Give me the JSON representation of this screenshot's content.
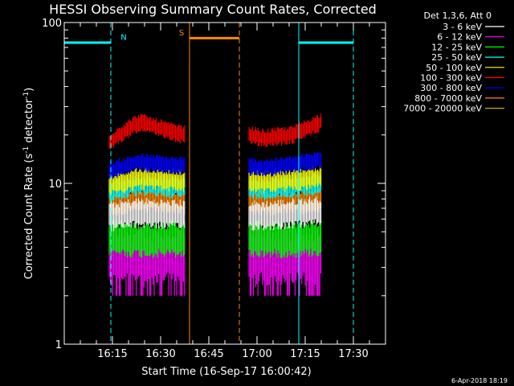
{
  "chart_data": {
    "type": "line",
    "title": "HESSI Observing Summary Count Rates, Corrected",
    "xlabel": "Start Time (16-Sep-17 16:00:42)",
    "ylabel": "Corrected Count Rate (s⁻¹ detector⁻¹)",
    "ylabel_parts": {
      "main": "Corrected Count Rate (s",
      "exp1": "-1",
      "mid": " detector",
      "exp2": "-1",
      "end": ")"
    },
    "y_scale": "log",
    "ylim": [
      1,
      100
    ],
    "xlim_minutes": [
      0,
      100
    ],
    "y_ticks": [
      {
        "value": 1,
        "label": "1"
      },
      {
        "value": 10,
        "label": "10"
      },
      {
        "value": 100,
        "label": "100"
      }
    ],
    "x_ticks": [
      {
        "minute": 15,
        "label": "16:15"
      },
      {
        "minute": 30,
        "label": "16:30"
      },
      {
        "minute": 45,
        "label": "16:45"
      },
      {
        "minute": 60,
        "label": "17:00"
      },
      {
        "minute": 75,
        "label": "17:15"
      },
      {
        "minute": 90,
        "label": "17:30"
      }
    ],
    "legend": {
      "position": "right",
      "header": "Det 1,3,6, Att 0",
      "entries": [
        {
          "label": "3 - 6 keV",
          "color": "#ffffff"
        },
        {
          "label": "6 - 12 keV",
          "color": "#ff00ff"
        },
        {
          "label": "12 - 25 keV",
          "color": "#00ff00"
        },
        {
          "label": "25 - 50 keV",
          "color": "#00ffff"
        },
        {
          "label": "50 - 100 keV",
          "color": "#ffff00"
        },
        {
          "label": "100 - 300 keV",
          "color": "#ff0000"
        },
        {
          "label": "300 - 800 keV",
          "color": "#0000ff"
        },
        {
          "label": "800 - 7000 keV",
          "color": "#ff8800"
        },
        {
          "label": "7000 - 20000 keV",
          "color": "#ccaa00"
        }
      ]
    },
    "segments_minutes": [
      [
        14,
        37.5
      ],
      [
        57.5,
        80
      ]
    ],
    "series": [
      {
        "color": "#ff00ff",
        "baseline": [
          3.5,
          3.5,
          3.5,
          3.5,
          3.5,
          3.5
        ],
        "spread": 0.16,
        "spike_low": 2.0
      },
      {
        "color": "#00ff00",
        "baseline": [
          4.6,
          4.5,
          4.5,
          4.5,
          4.5,
          4.6
        ],
        "spread": 0.1
      },
      {
        "color": "#ff8800",
        "baseline": [
          7.5,
          7.9,
          7.8,
          7.6,
          7.7,
          8.0
        ],
        "spread": 0.07
      },
      {
        "color": "#ffffff",
        "baseline": [
          6.2,
          6.6,
          6.4,
          6.3,
          6.5,
          6.8
        ],
        "spread": 0.08
      },
      {
        "color": "#00ffff",
        "baseline": [
          9.0,
          9.8,
          9.6,
          9.3,
          9.6,
          10.0
        ],
        "spread": 0.06
      },
      {
        "color": "#ffff00",
        "baseline": [
          9.8,
          10.8,
          10.5,
          10.2,
          10.5,
          11.0
        ],
        "spread": 0.06
      },
      {
        "color": "#0000ff",
        "baseline": [
          12.0,
          13.5,
          13.0,
          12.5,
          13.0,
          14.0
        ],
        "spread": 0.05
      },
      {
        "color": "#ff0000",
        "baseline": [
          18.0,
          24.0,
          21.0,
          19.0,
          20.0,
          24.0
        ],
        "spread": 0.05
      }
    ],
    "flag_lines": [
      {
        "name": "N",
        "color": "#00ffff",
        "level": 75,
        "ranges": [
          [
            0,
            14.5
          ],
          [
            73,
            90
          ]
        ],
        "solid_at": [
          73
        ],
        "dashed_at": [
          14.5,
          90
        ]
      },
      {
        "name": "S",
        "color": "#ff8800",
        "level": 80,
        "ranges": [
          [
            39,
            54.5
          ]
        ],
        "solid_at": [
          39
        ],
        "dashed_at": [
          54.5
        ]
      }
    ],
    "flag_labels": [
      {
        "text": "N",
        "minute": 18.5,
        "value": 78,
        "color": "#00ffff"
      },
      {
        "text": "S",
        "minute": 36.5,
        "value": 83,
        "color": "#ff8800"
      }
    ],
    "footer_date": "6-Apr-2018 18:19"
  }
}
